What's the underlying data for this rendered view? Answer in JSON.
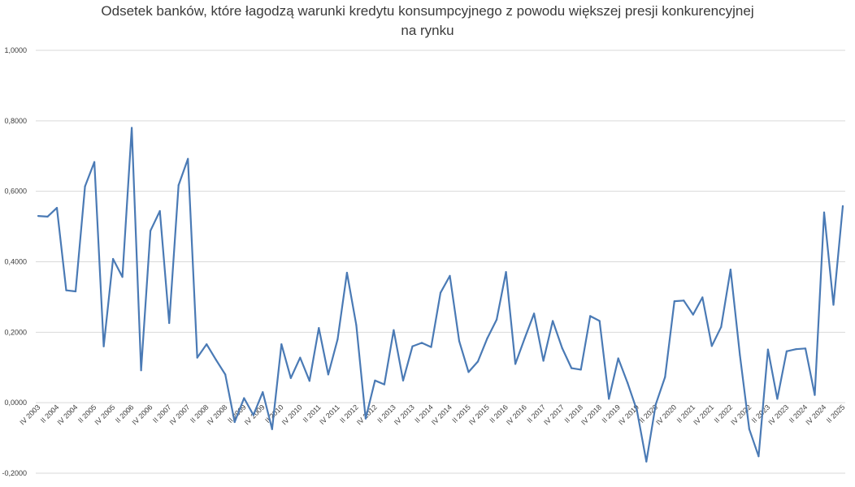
{
  "chart_data": {
    "type": "line",
    "title_line1": "Odsetek banków, które łagodzą warunki kredytu konsumpcyjnego z powodu większej presji konkurencyjnej",
    "title_line2": "na rynku",
    "xlabel": "",
    "ylabel": "",
    "ylim": [
      -0.2,
      1.0
    ],
    "y_ticks": [
      "-0,2000",
      "0,0000",
      "0,2000",
      "0,4000",
      "0,6000",
      "0,8000",
      "1,0000"
    ],
    "y_tick_values": [
      -0.2,
      0.0,
      0.2,
      0.4,
      0.6,
      0.8,
      1.0
    ],
    "grid": true,
    "legend": "none",
    "line_color": "#4a7ab5",
    "x_tick_labels": [
      "IV 2003",
      "II 2004",
      "IV 2004",
      "II 2005",
      "IV 2005",
      "II 2006",
      "IV 2006",
      "II 2007",
      "IV 2007",
      "II 2008",
      "IV 2008",
      "II 2009",
      "IV 2009",
      "II 2010",
      "IV 2010",
      "II 2011",
      "IV 2011",
      "II 2012",
      "IV 2012",
      "II 2013",
      "IV 2013",
      "II 2014",
      "IV 2014",
      "II 2015",
      "IV 2015",
      "II 2016",
      "IV 2016",
      "II 2017",
      "IV 2017",
      "II 2018",
      "IV 2018",
      "II 2019",
      "IV 2019",
      "II 2020",
      "IV 2020",
      "II 2021",
      "IV 2021",
      "II 2022",
      "IV 2022",
      "II 2023",
      "IV 2023",
      "II 2024",
      "IV 2024",
      "II 2025"
    ],
    "values": [
      0.53,
      0.528,
      0.553,
      0.319,
      0.316,
      0.614,
      0.683,
      0.16,
      0.408,
      0.357,
      0.78,
      0.092,
      0.488,
      0.544,
      0.226,
      0.617,
      0.692,
      0.128,
      0.166,
      0.122,
      0.08,
      -0.055,
      0.013,
      -0.035,
      0.03,
      -0.075,
      0.166,
      0.07,
      0.128,
      0.062,
      0.212,
      0.08,
      0.18,
      0.369,
      0.22,
      -0.045,
      0.063,
      0.052,
      0.206,
      0.063,
      0.16,
      0.17,
      0.158,
      0.312,
      0.36,
      0.175,
      0.087,
      0.117,
      0.183,
      0.236,
      0.371,
      0.11,
      0.183,
      0.253,
      0.119,
      0.232,
      0.155,
      0.098,
      0.094,
      0.246,
      0.232,
      0.011,
      0.126,
      0.056,
      -0.022,
      -0.167,
      -0.005,
      0.073,
      0.288,
      0.29,
      0.25,
      0.299,
      0.161,
      0.215,
      0.378,
      0.135,
      -0.075,
      -0.152,
      0.151,
      0.011,
      0.146,
      0.152,
      0.154,
      0.022,
      0.54,
      0.278,
      0.558
    ]
  }
}
